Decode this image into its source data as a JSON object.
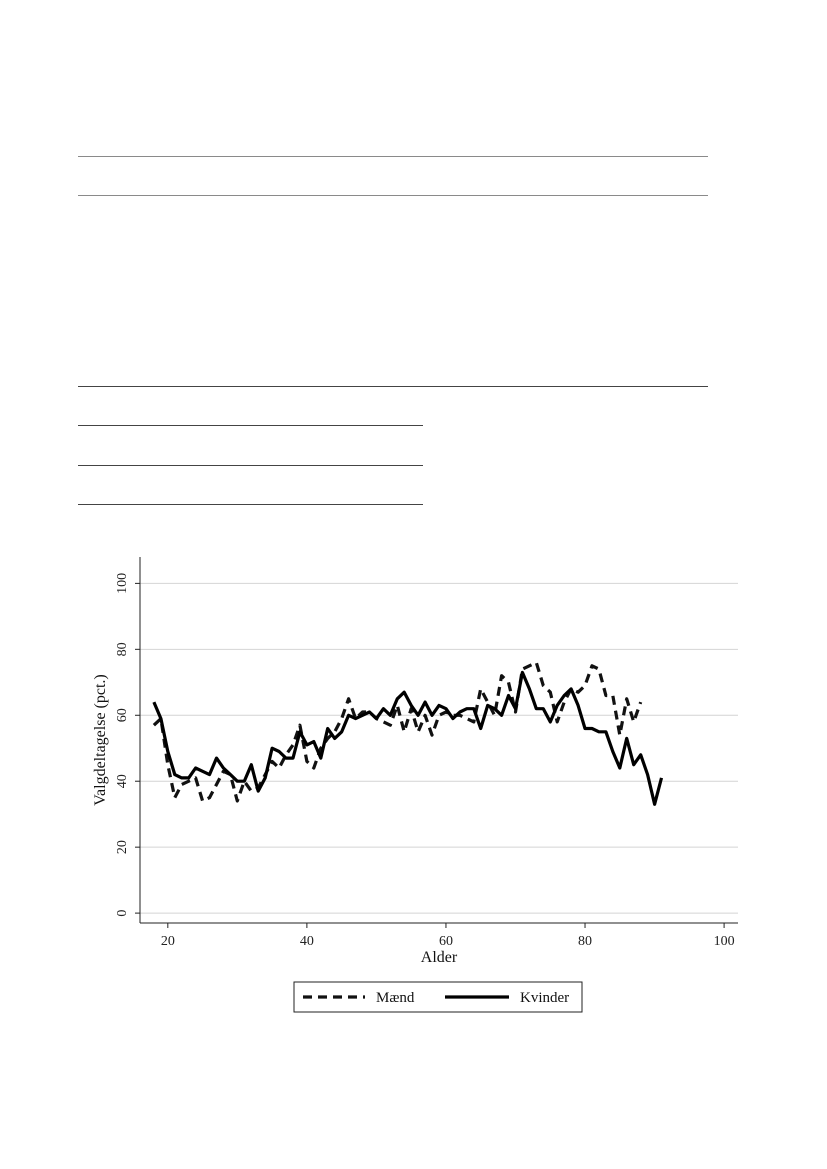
{
  "page": {
    "background": "#ffffff"
  },
  "chart_data": {
    "type": "line",
    "title": "",
    "xlabel": "Alder",
    "ylabel": "Valgdeltagelse (pct.)",
    "xlim": [
      16,
      102
    ],
    "ylim": [
      -3,
      108
    ],
    "xticks": [
      20,
      40,
      60,
      80,
      100
    ],
    "yticks": [
      0,
      20,
      40,
      60,
      80,
      100
    ],
    "grid": "horizontal",
    "legend_position": "bottom-center",
    "series": [
      {
        "name": "Mænd",
        "style": "dashed",
        "color": "#111111",
        "x": [
          18,
          19,
          20,
          21,
          22,
          23,
          24,
          25,
          26,
          27,
          28,
          29,
          30,
          31,
          32,
          33,
          34,
          35,
          36,
          37,
          38,
          39,
          40,
          41,
          42,
          43,
          44,
          45,
          46,
          47,
          48,
          49,
          50,
          51,
          52,
          53,
          54,
          55,
          56,
          57,
          58,
          59,
          60,
          61,
          62,
          63,
          64,
          65,
          66,
          67,
          68,
          69,
          70,
          71,
          72,
          73,
          74,
          75,
          76,
          77,
          78,
          79,
          80,
          81,
          82,
          83,
          84,
          85,
          86,
          87,
          88
        ],
        "y": [
          57,
          59,
          45,
          35,
          39,
          40,
          41,
          34,
          35,
          39,
          43,
          42,
          34,
          40,
          37,
          38,
          42,
          46,
          44,
          48,
          51,
          57,
          46,
          44,
          50,
          53,
          55,
          59,
          65,
          59,
          61,
          61,
          59,
          58,
          57,
          63,
          55,
          62,
          55,
          60,
          54,
          60,
          61,
          60,
          60,
          59,
          58,
          68,
          64,
          60,
          72,
          70,
          61,
          74,
          75,
          76,
          69,
          67,
          58,
          64,
          68,
          67,
          69,
          75,
          74,
          66,
          66,
          54,
          65,
          58,
          64
        ]
      },
      {
        "name": "Kvinder",
        "style": "solid",
        "color": "#000000",
        "x": [
          18,
          19,
          20,
          21,
          22,
          23,
          24,
          25,
          26,
          27,
          28,
          29,
          30,
          31,
          32,
          33,
          34,
          35,
          36,
          37,
          38,
          39,
          40,
          41,
          42,
          43,
          44,
          45,
          46,
          47,
          48,
          49,
          50,
          51,
          52,
          53,
          54,
          55,
          56,
          57,
          58,
          59,
          60,
          61,
          62,
          63,
          64,
          65,
          66,
          67,
          68,
          69,
          70,
          71,
          72,
          73,
          74,
          75,
          76,
          77,
          78,
          79,
          80,
          81,
          82,
          83,
          84,
          85,
          86,
          87,
          88,
          89,
          90,
          91
        ],
        "y": [
          64,
          59,
          49,
          42,
          41,
          41,
          44,
          43,
          42,
          47,
          44,
          42,
          40,
          40,
          45,
          37,
          41,
          50,
          49,
          47,
          47,
          55,
          51,
          52,
          47,
          56,
          53,
          55,
          60,
          59,
          60,
          61,
          59,
          62,
          60,
          65,
          67,
          63,
          60,
          64,
          60,
          63,
          62,
          59,
          61,
          62,
          62,
          56,
          63,
          62,
          60,
          66,
          62,
          73,
          68,
          62,
          62,
          58,
          63,
          66,
          68,
          63,
          56,
          56,
          55,
          55,
          49,
          44,
          53,
          45,
          48,
          42,
          33,
          41
        ]
      }
    ]
  }
}
